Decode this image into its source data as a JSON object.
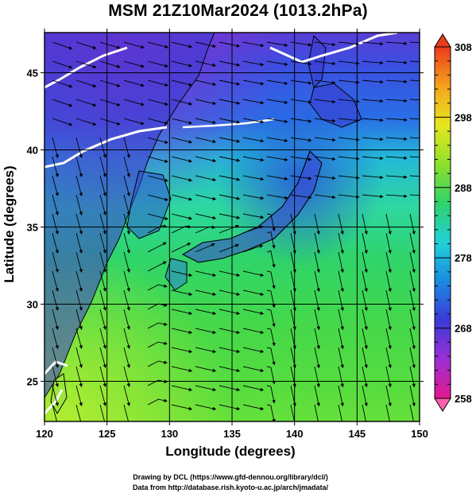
{
  "title": "MSM 21Z10Mar2024 (1013.2hPa)",
  "axes": {
    "xlabel": "Longitude (degrees)",
    "ylabel": "Latitude  (degrees)",
    "x_ticks": [
      "120",
      "125",
      "130",
      "135",
      "140",
      "145",
      "150"
    ],
    "y_ticks": [
      "25",
      "30",
      "35",
      "40",
      "45"
    ],
    "x_range": [
      120,
      150
    ],
    "y_range": [
      22.4,
      47.6
    ]
  },
  "colorbar": {
    "ticks": [
      "308",
      "298",
      "288",
      "278",
      "268",
      "258"
    ],
    "range": [
      258,
      308
    ],
    "colors": [
      "#e4188c",
      "#9b2fd6",
      "#3b3ad8",
      "#1a8ae0",
      "#22d0d8",
      "#2fd36b",
      "#8fe02a",
      "#e6e620",
      "#f5a21c",
      "#ec3b1c"
    ]
  },
  "credits": {
    "line1": "Drawing by DCL (https://www.gfd-dennou.org/library/dcl/)",
    "line2": "Data from http://database.rish.kyoto-u.ac.jp/arch/jmadata/"
  }
}
